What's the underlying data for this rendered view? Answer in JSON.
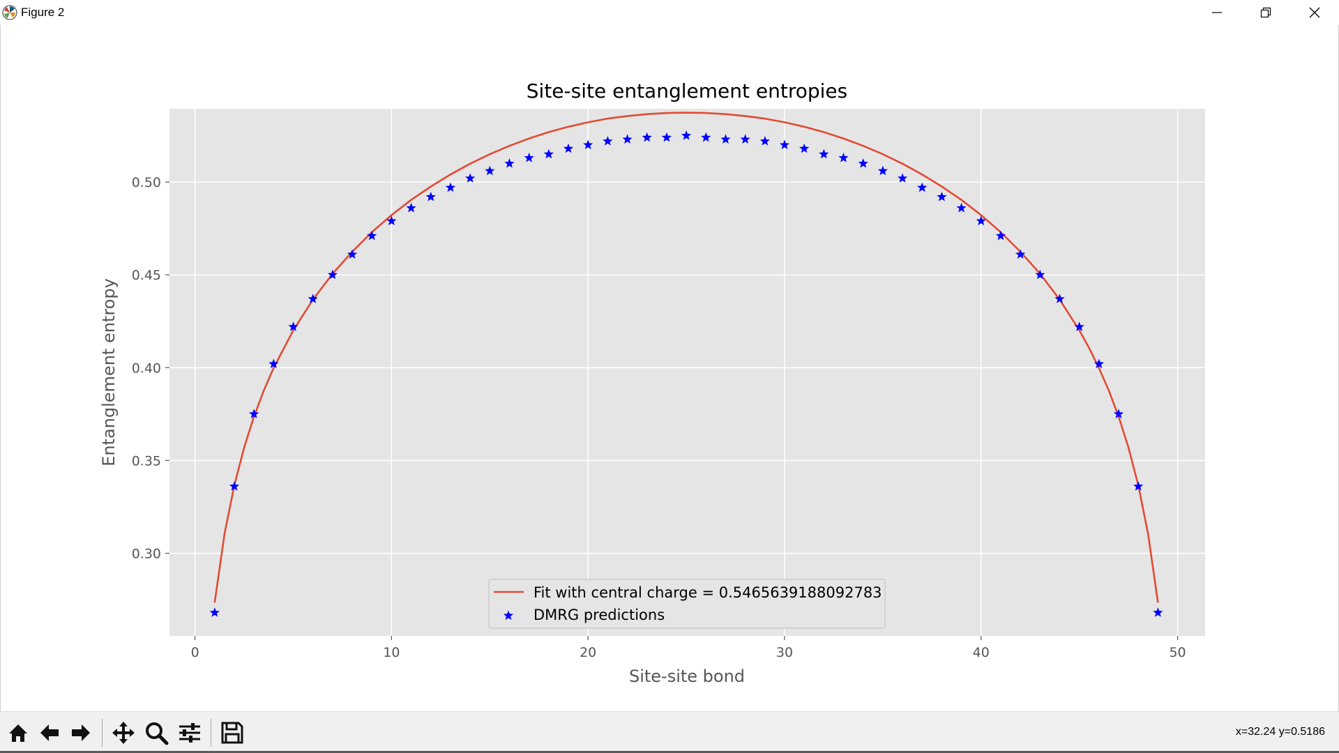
{
  "window": {
    "title": "Figure 2",
    "controls": {
      "minimize": "minimize",
      "maximize": "maximize",
      "close": "close"
    }
  },
  "toolbar": {
    "buttons": [
      {
        "name": "home-button",
        "icon": "home-icon"
      },
      {
        "name": "back-button",
        "icon": "arrow-left-icon"
      },
      {
        "name": "forward-button",
        "icon": "arrow-right-icon"
      },
      {
        "name": "pan-button",
        "icon": "move-icon"
      },
      {
        "name": "zoom-button",
        "icon": "magnifier-icon"
      },
      {
        "name": "configure-subplots-button",
        "icon": "sliders-icon"
      },
      {
        "name": "save-button",
        "icon": "floppy-disk-icon"
      }
    ],
    "coords": "x=32.24 y=0.5186"
  },
  "colors": {
    "axes_bg": "#e5e5e5",
    "grid": "#ffffff",
    "fit_line": "#e24a33",
    "markers": "#0000ff",
    "text": "#555555"
  },
  "chart_data": {
    "type": "line",
    "title": "Site-site entanglement entropies",
    "xlabel": "Site-site bond",
    "ylabel": "Entanglement entropy",
    "xlim": [
      -1.3,
      51.4
    ],
    "ylim": [
      0.2555,
      0.5395
    ],
    "xticks": [
      0,
      10,
      20,
      30,
      40,
      50
    ],
    "xtick_labels": [
      "0",
      "10",
      "20",
      "30",
      "40",
      "50"
    ],
    "yticks": [
      0.3,
      0.35,
      0.4,
      0.45,
      0.5
    ],
    "ytick_labels": [
      "0.30",
      "0.35",
      "0.40",
      "0.45",
      "0.50"
    ],
    "grid": true,
    "legend_position": "lower-center",
    "series": [
      {
        "name": "Fit with central charge = 0.5465639188092783",
        "kind": "line",
        "color": "#e24a33",
        "x": [
          1,
          1.5,
          2,
          2.5,
          3,
          3.5,
          4,
          5,
          6,
          7,
          8,
          9,
          10,
          11,
          12,
          13,
          14,
          15,
          16,
          17,
          18,
          19,
          20,
          21,
          22,
          23,
          24,
          25,
          26,
          27,
          28,
          29,
          30,
          31,
          32,
          33,
          34,
          35,
          36,
          37,
          38,
          39,
          40,
          41,
          42,
          43,
          44,
          45,
          45.5,
          46,
          46.5,
          47,
          47.5,
          48,
          48.5,
          49
        ],
        "y": [
          0.2734,
          0.3104,
          0.3366,
          0.357,
          0.3737,
          0.3877,
          0.3998,
          0.4201,
          0.4367,
          0.4506,
          0.4625,
          0.473,
          0.4822,
          0.4904,
          0.4976,
          0.5041,
          0.5099,
          0.515,
          0.5195,
          0.5235,
          0.5269,
          0.5298,
          0.5322,
          0.5342,
          0.5356,
          0.5366,
          0.5372,
          0.5374,
          0.5372,
          0.5366,
          0.5356,
          0.5342,
          0.5322,
          0.5298,
          0.5269,
          0.5235,
          0.5195,
          0.515,
          0.5099,
          0.5041,
          0.4976,
          0.4904,
          0.4822,
          0.473,
          0.4625,
          0.4506,
          0.4367,
          0.4201,
          0.4106,
          0.3998,
          0.3877,
          0.3737,
          0.357,
          0.3366,
          0.3104,
          0.2734
        ]
      },
      {
        "name": "DMRG predictions",
        "kind": "scatter",
        "marker": "star",
        "color": "#0000ff",
        "x": [
          1,
          2,
          3,
          4,
          5,
          6,
          7,
          8,
          9,
          10,
          11,
          12,
          13,
          14,
          15,
          16,
          17,
          18,
          19,
          20,
          21,
          22,
          23,
          24,
          25,
          26,
          27,
          28,
          29,
          30,
          31,
          32,
          33,
          34,
          35,
          36,
          37,
          38,
          39,
          40,
          41,
          42,
          43,
          44,
          45,
          46,
          47,
          48,
          49
        ],
        "y": [
          0.268,
          0.336,
          0.375,
          0.402,
          0.422,
          0.437,
          0.45,
          0.461,
          0.471,
          0.479,
          0.486,
          0.492,
          0.497,
          0.502,
          0.506,
          0.51,
          0.513,
          0.515,
          0.518,
          0.52,
          0.522,
          0.523,
          0.524,
          0.524,
          0.525,
          0.524,
          0.523,
          0.523,
          0.522,
          0.52,
          0.518,
          0.515,
          0.513,
          0.51,
          0.506,
          0.502,
          0.497,
          0.492,
          0.486,
          0.479,
          0.471,
          0.461,
          0.45,
          0.437,
          0.422,
          0.402,
          0.375,
          0.336,
          0.268
        ]
      }
    ]
  }
}
